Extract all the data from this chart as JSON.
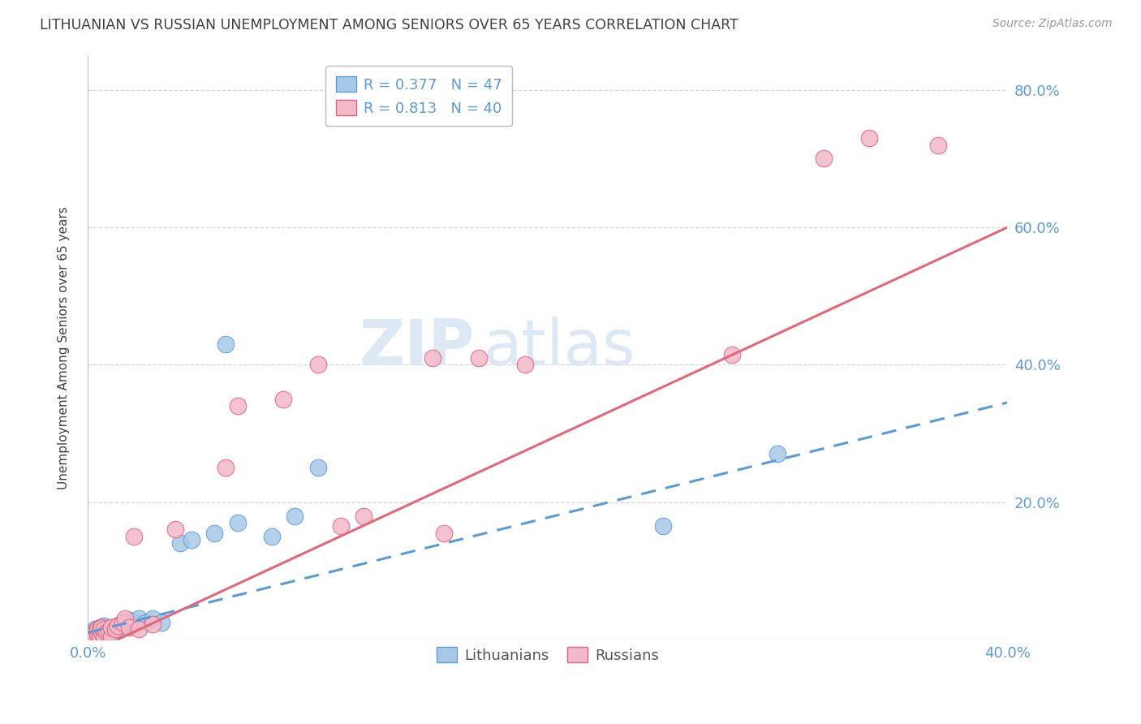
{
  "title": "LITHUANIAN VS RUSSIAN UNEMPLOYMENT AMONG SENIORS OVER 65 YEARS CORRELATION CHART",
  "source": "Source: ZipAtlas.com",
  "ylabel": "Unemployment Among Seniors over 65 years",
  "xlim": [
    0.0,
    0.4
  ],
  "ylim": [
    0.0,
    0.85
  ],
  "blue_R": 0.377,
  "blue_N": 47,
  "pink_R": 0.813,
  "pink_N": 40,
  "blue_color": "#a8c8e8",
  "blue_edge_color": "#5b9bd5",
  "pink_color": "#f4b8c8",
  "pink_edge_color": "#e06080",
  "blue_line_color": "#5b9bd5",
  "pink_line_color": "#e06878",
  "watermark_color": "#dce8f4",
  "legend_label_blue": "Lithuanians",
  "legend_label_pink": "Russians",
  "background_color": "#ffffff",
  "grid_color": "#cccccc",
  "title_color": "#404040",
  "axis_label_color": "#5b9bd5",
  "blue_x": [
    0.001,
    0.002,
    0.002,
    0.003,
    0.003,
    0.003,
    0.004,
    0.004,
    0.004,
    0.005,
    0.005,
    0.005,
    0.006,
    0.006,
    0.006,
    0.007,
    0.007,
    0.007,
    0.008,
    0.008,
    0.009,
    0.009,
    0.01,
    0.01,
    0.011,
    0.012,
    0.013,
    0.014,
    0.015,
    0.016,
    0.017,
    0.018,
    0.02,
    0.022,
    0.025,
    0.028,
    0.032,
    0.04,
    0.045,
    0.055,
    0.065,
    0.08,
    0.09,
    0.1,
    0.06,
    0.25,
    0.3
  ],
  "blue_y": [
    0.005,
    0.005,
    0.01,
    0.005,
    0.008,
    0.015,
    0.005,
    0.01,
    0.015,
    0.008,
    0.012,
    0.018,
    0.005,
    0.01,
    0.018,
    0.008,
    0.012,
    0.02,
    0.005,
    0.015,
    0.008,
    0.015,
    0.01,
    0.018,
    0.015,
    0.018,
    0.02,
    0.022,
    0.018,
    0.022,
    0.025,
    0.028,
    0.025,
    0.03,
    0.025,
    0.03,
    0.025,
    0.14,
    0.145,
    0.155,
    0.17,
    0.15,
    0.18,
    0.25,
    0.43,
    0.165,
    0.27
  ],
  "pink_x": [
    0.001,
    0.002,
    0.002,
    0.003,
    0.003,
    0.004,
    0.004,
    0.005,
    0.005,
    0.006,
    0.006,
    0.007,
    0.007,
    0.008,
    0.009,
    0.01,
    0.01,
    0.012,
    0.013,
    0.015,
    0.016,
    0.018,
    0.02,
    0.022,
    0.028,
    0.038,
    0.06,
    0.065,
    0.085,
    0.1,
    0.11,
    0.12,
    0.15,
    0.155,
    0.17,
    0.19,
    0.28,
    0.32,
    0.34,
    0.37
  ],
  "pink_y": [
    0.005,
    0.005,
    0.008,
    0.01,
    0.005,
    0.008,
    0.015,
    0.005,
    0.015,
    0.01,
    0.018,
    0.005,
    0.015,
    0.01,
    0.012,
    0.005,
    0.018,
    0.015,
    0.02,
    0.025,
    0.03,
    0.018,
    0.15,
    0.015,
    0.022,
    0.16,
    0.25,
    0.34,
    0.35,
    0.4,
    0.165,
    0.18,
    0.41,
    0.155,
    0.41,
    0.4,
    0.415,
    0.7,
    0.73,
    0.72
  ]
}
